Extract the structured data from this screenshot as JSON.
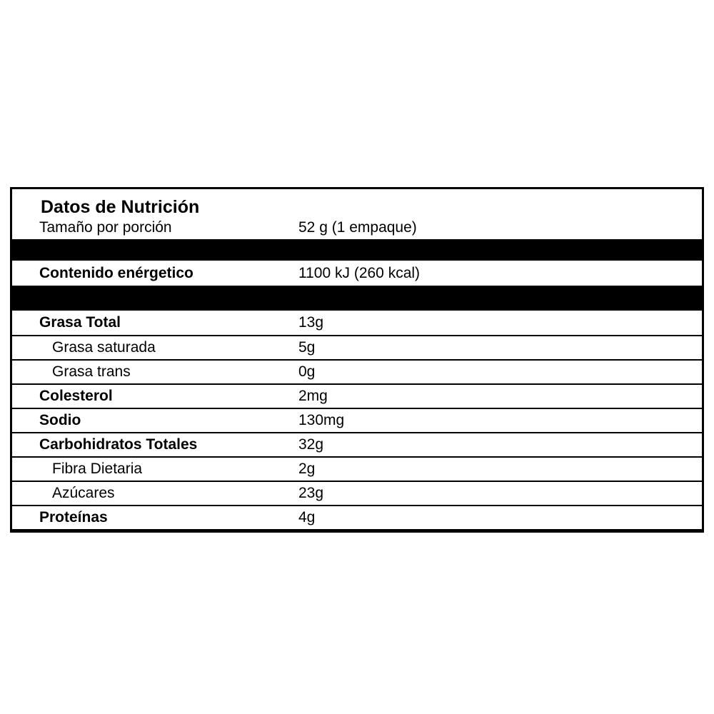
{
  "label": {
    "title": "Datos de Nutrición",
    "serving": {
      "label": "Tamaño por porción",
      "value": "52 g (1 empaque)"
    },
    "energy": {
      "label": "Contenido enérgetico",
      "value": "1100 kJ (260 kcal)"
    },
    "rows": [
      {
        "label": "Grasa Total",
        "value": "13g"
      },
      {
        "label": "Grasa saturada",
        "value": "5g"
      },
      {
        "label": "Grasa trans",
        "value": "0g"
      },
      {
        "label": "Colesterol",
        "value": "2mg"
      },
      {
        "label": "Sodio",
        "value": "130mg"
      },
      {
        "label": "Carbohidratos Totales",
        "value": "32g"
      },
      {
        "label": "Fibra Dietaria",
        "value": "2g"
      },
      {
        "label": "Azúcares",
        "value": "23g"
      },
      {
        "label": "Proteínas",
        "value": "4g"
      }
    ]
  },
  "colors": {
    "text": "#000000",
    "background": "#ffffff",
    "divider_bar": "#000000",
    "border": "#000000"
  }
}
